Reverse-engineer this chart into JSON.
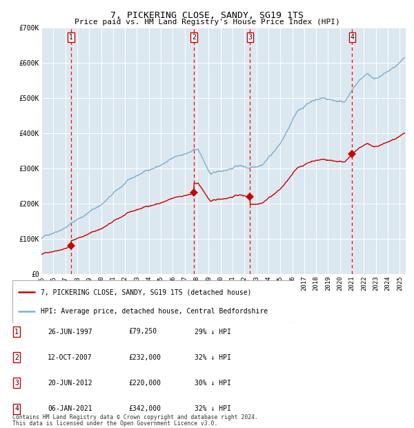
{
  "title": "7, PICKERING CLOSE, SANDY, SG19 1TS",
  "subtitle": "Price paid vs. HM Land Registry's House Price Index (HPI)",
  "legend_label_red": "7, PICKERING CLOSE, SANDY, SG19 1TS (detached house)",
  "legend_label_blue": "HPI: Average price, detached house, Central Bedfordshire",
  "footer1": "Contains HM Land Registry data © Crown copyright and database right 2024.",
  "footer2": "This data is licensed under the Open Government Licence v3.0.",
  "sales": [
    {
      "num": 1,
      "date": "26-JUN-1997",
      "price": 79250,
      "pct": "29% ↓ HPI",
      "year_x": 1997.48
    },
    {
      "num": 2,
      "date": "12-OCT-2007",
      "price": 232000,
      "pct": "32% ↓ HPI",
      "year_x": 2007.78
    },
    {
      "num": 3,
      "date": "20-JUN-2012",
      "price": 220000,
      "pct": "30% ↓ HPI",
      "year_x": 2012.47
    },
    {
      "num": 4,
      "date": "06-JAN-2021",
      "price": 342000,
      "pct": "32% ↓ HPI",
      "year_x": 2021.02
    }
  ],
  "red_color": "#cc0000",
  "blue_color": "#7ab0d4",
  "dashed_color": "#ff0000",
  "background_plot": "#dce8f0",
  "grid_color": "#ffffff",
  "ylim": [
    0,
    700000
  ],
  "xlim_start": 1995.0,
  "xlim_end": 2025.5,
  "yticks": [
    0,
    100000,
    200000,
    300000,
    400000,
    500000,
    600000,
    700000
  ],
  "ytick_labels": [
    "£0",
    "£100K",
    "£200K",
    "£300K",
    "£400K",
    "£500K",
    "£600K",
    "£700K"
  ],
  "xticks": [
    1995,
    1996,
    1997,
    1998,
    1999,
    2000,
    2001,
    2002,
    2003,
    2004,
    2005,
    2006,
    2007,
    2008,
    2009,
    2010,
    2011,
    2012,
    2013,
    2014,
    2015,
    2016,
    2017,
    2018,
    2019,
    2020,
    2021,
    2022,
    2023,
    2024,
    2025
  ]
}
